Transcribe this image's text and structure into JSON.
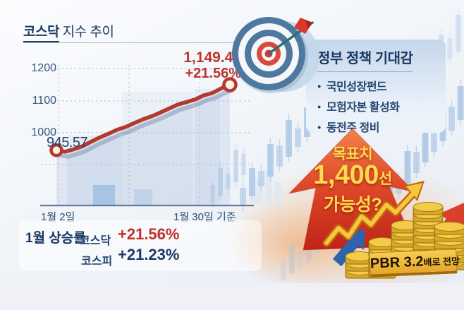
{
  "title": {
    "bold": "코스닥",
    "rest": " 지수 추이"
  },
  "chart": {
    "y_ticks": [
      "1200",
      "1100",
      "1000"
    ],
    "x_axis_start": "1월 2일",
    "x_axis_end": "1월 30일 기준",
    "start_label": "945.57",
    "end_label": "1,149.44",
    "end_change": "+21.56%"
  },
  "chart_data": {
    "type": "line",
    "title": "코스닥 지수 추이",
    "x_range": [
      "1월 2일",
      "1월 30일"
    ],
    "series": [
      {
        "name": "코스닥",
        "values": [
          945.57,
          941.0,
          948.5,
          958.0,
          972.0,
          985.5,
          997.0,
          1009.5,
          1018.0,
          1030.5,
          1042.0,
          1051.5,
          1063.0,
          1075.5,
          1088.0,
          1095.5,
          1104.0,
          1116.5,
          1124.0,
          1138.0,
          1149.44
        ]
      }
    ],
    "yticks": [
      1000,
      1100,
      1200
    ],
    "ylim": [
      900,
      1230
    ],
    "grid": "dotted",
    "annotations": {
      "start": "945.57",
      "end": "1,149.44",
      "change": "+21.56%"
    }
  },
  "policy": {
    "title": "정부 정책 기대감",
    "items": [
      "국민성장펀드",
      "모험자본 활성화",
      "동전주 정비"
    ]
  },
  "target": {
    "line1": "목표치",
    "value": "1,400",
    "unit": "선",
    "line2": "가능성?"
  },
  "gains": {
    "label": "1월 상승률",
    "rows": [
      {
        "name": "코스닥",
        "value": "+21.56%"
      },
      {
        "name": "코스피",
        "value": "+21.23%"
      }
    ]
  },
  "pbr": {
    "value": "PBR 3.2",
    "suffix": "배로 전망"
  },
  "colors": {
    "navy": "#1d3a62",
    "red": "#c0332c",
    "line_red": "#b4392f",
    "yellow": "#ffd94e",
    "panel_blue": "#c5d7eb",
    "gold": "#e9b83a",
    "candle_blue": "#b6cde9"
  }
}
